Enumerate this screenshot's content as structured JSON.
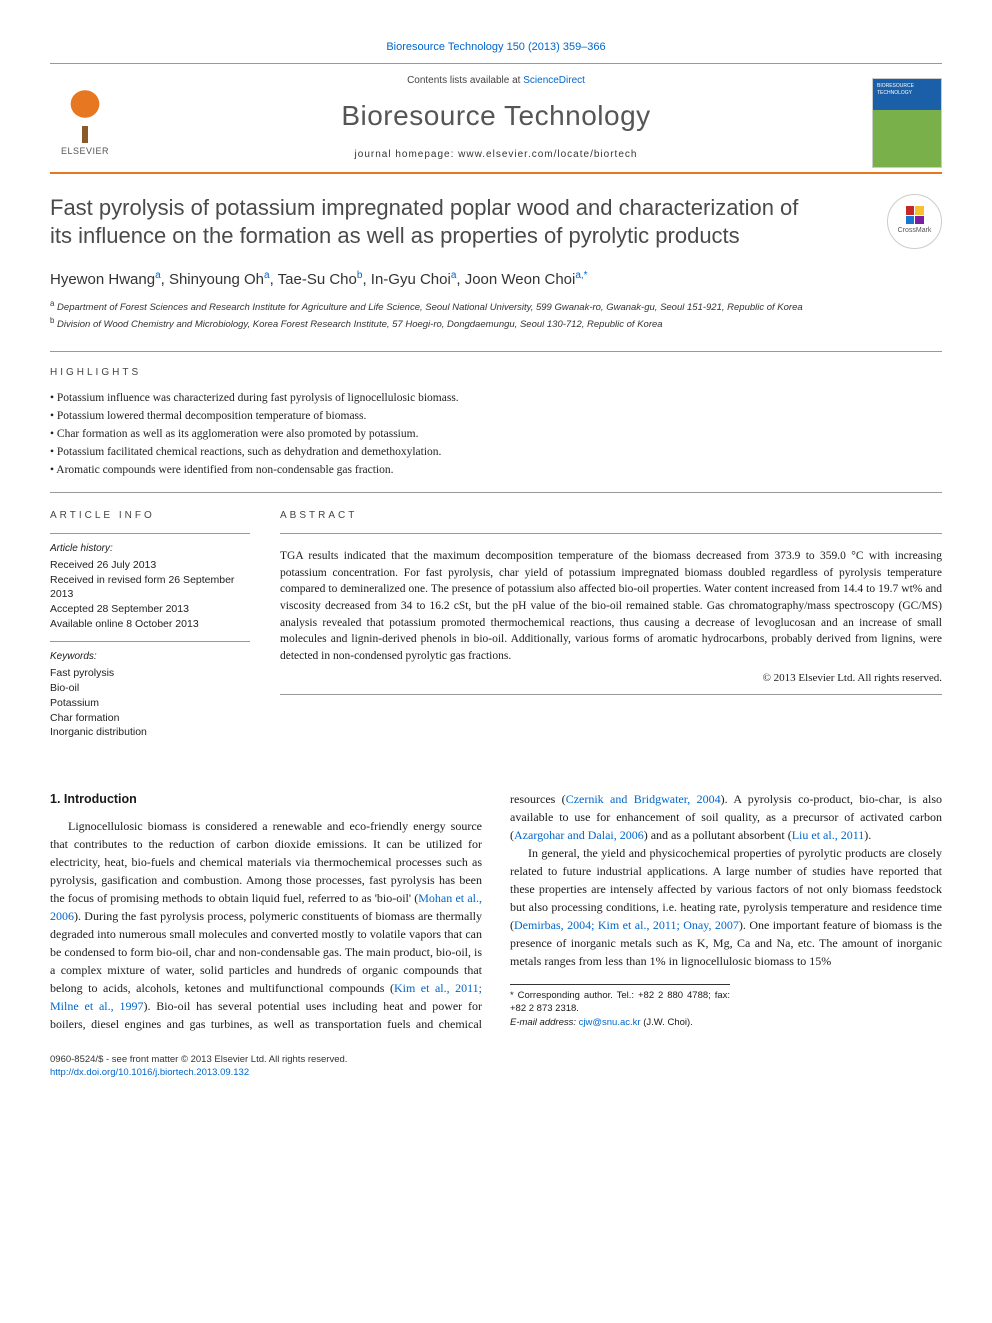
{
  "citation": "Bioresource Technology 150 (2013) 359–366",
  "header": {
    "publisher": "ELSEVIER",
    "contents_prefix": "Contents lists available at ",
    "contents_link": "ScienceDirect",
    "journal_name": "Bioresource Technology",
    "homepage_label": "journal homepage: ",
    "homepage_url": "www.elsevier.com/locate/biortech",
    "cover_text": "BIORESOURCE TECHNOLOGY"
  },
  "crossmark_label": "CrossMark",
  "title": "Fast pyrolysis of potassium impregnated poplar wood and characterization of its influence on the formation as well as properties of pyrolytic products",
  "authors_html": "Hyewon Hwang<sup>a</sup>, Shinyoung Oh<sup>a</sup>, Tae-Su Cho<sup>b</sup>, In-Gyu Choi<sup>a</sup>, Joon Weon Choi<sup class='corr'>a,*</sup>",
  "affiliations": [
    "a Department of Forest Sciences and Research Institute for Agriculture and Life Science, Seoul National University, 599 Gwanak-ro, Gwanak-gu, Seoul 151-921, Republic of Korea",
    "b Division of Wood Chemistry and Microbiology, Korea Forest Research Institute, 57 Hoegi-ro, Dongdaemungu, Seoul 130-712, Republic of Korea"
  ],
  "highlights_label": "HIGHLIGHTS",
  "highlights": [
    "Potassium influence was characterized during fast pyrolysis of lignocellulosic biomass.",
    "Potassium lowered thermal decomposition temperature of biomass.",
    "Char formation as well as its agglomeration were also promoted by potassium.",
    "Potassium facilitated chemical reactions, such as dehydration and demethoxylation.",
    "Aromatic compounds were identified from non-condensable gas fraction."
  ],
  "article_info_label": "ARTICLE INFO",
  "history_label": "Article history:",
  "history": [
    "Received 26 July 2013",
    "Received in revised form 26 September 2013",
    "Accepted 28 September 2013",
    "Available online 8 October 2013"
  ],
  "keywords_label": "Keywords:",
  "keywords": [
    "Fast pyrolysis",
    "Bio-oil",
    "Potassium",
    "Char formation",
    "Inorganic distribution"
  ],
  "abstract_label": "ABSTRACT",
  "abstract": "TGA results indicated that the maximum decomposition temperature of the biomass decreased from 373.9 to 359.0 °C with increasing potassium concentration. For fast pyrolysis, char yield of potassium impregnated biomass doubled regardless of pyrolysis temperature compared to demineralized one. The presence of potassium also affected bio-oil properties. Water content increased from 14.4 to 19.7 wt% and viscosity decreased from 34 to 16.2 cSt, but the pH value of the bio-oil remained stable. Gas chromatography/mass spectroscopy (GC/MS) analysis revealed that potassium promoted thermochemical reactions, thus causing a decrease of levoglucosan and an increase of small molecules and lignin-derived phenols in bio-oil. Additionally, various forms of aromatic hydrocarbons, probably derived from lignins, were detected in non-condensed pyrolytic gas fractions.",
  "copyright": "© 2013 Elsevier Ltd. All rights reserved.",
  "intro_heading": "1. Introduction",
  "body": {
    "p1a": "Lignocellulosic biomass is considered a renewable and eco-friendly energy source that contributes to the reduction of carbon dioxide emissions. It can be utilized for electricity, heat, bio-fuels and chemical materials via thermochemical processes such as pyrolysis, gasification and combustion. Among those processes, fast pyrolysis has been the focus of promising methods to obtain liquid fuel, referred to as 'bio-oil' (",
    "c1": "Mohan et al., 2006",
    "p1b": "). During the fast pyrolysis process, polymeric constituents of biomass are thermally degraded into numerous small molecules and converted mostly to volatile vapors that can be condensed to form bio-oil, char and non-condensable gas. The main product, bio-oil, is a complex mixture of water, solid particles and hundreds of organic ",
    "p1c": "compounds that belong to acids, alcohols, ketones and multifunctional compounds (",
    "c2": "Kim et al., 2011; Milne et al., 1997",
    "p1d": "). Bio-oil has several potential uses including heat and power for boilers, diesel engines and gas turbines, as well as transportation fuels and chemical resources (",
    "c3": "Czernik and Bridgwater, 2004",
    "p1e": "). A pyrolysis co-product, bio-char, is also available to use for enhancement of soil quality, as a precursor of activated carbon (",
    "c4": "Azargohar and Dalai, 2006",
    "p1f": ") and as a pollutant absorbent (",
    "c5": "Liu et al., 2011",
    "p1g": ").",
    "p2a": "In general, the yield and physicochemical properties of pyrolytic products are closely related to future industrial applications. A large number of studies have reported that these properties are intensely affected by various factors of not only biomass feedstock but also processing conditions, i.e. heating rate, pyrolysis temperature and residence time (",
    "c6": "Demirbas, 2004; Kim et al., 2011; Onay, 2007",
    "p2b": "). One important feature of biomass is the presence of inorganic metals such as K, Mg, Ca and Na, etc. The amount of inorganic metals ranges from less than 1% in lignocellulosic biomass to 15%"
  },
  "footnote": {
    "corr_label": "* Corresponding author. Tel.: +82 2 880 4788; fax: +82 2 873 2318.",
    "email_label": "E-mail address: ",
    "email": "cjw@snu.ac.kr",
    "email_suffix": " (J.W. Choi)."
  },
  "footer": {
    "left1": "0960-8524/$ - see front matter © 2013 Elsevier Ltd. All rights reserved.",
    "left2": "http://dx.doi.org/10.1016/j.biortech.2013.09.132"
  },
  "colors": {
    "link": "#0066cc",
    "accent": "#e87722",
    "text": "#1a1a1a",
    "heading_gray": "#4a4a4a"
  }
}
